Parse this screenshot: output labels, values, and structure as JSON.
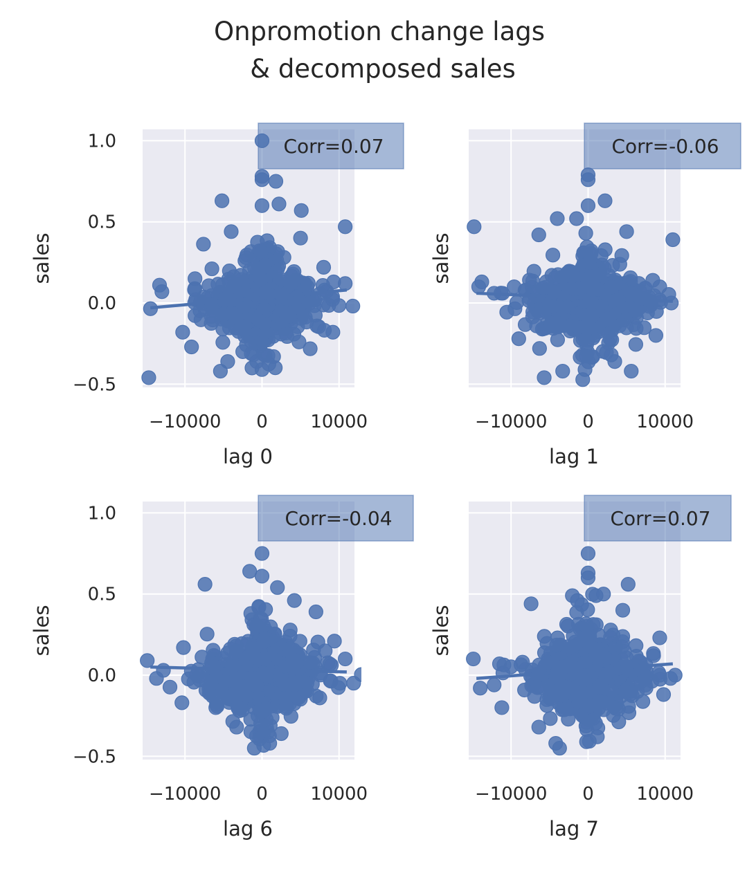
{
  "figure": {
    "title_line1": "Onpromotion change lags",
    "title_line2": "& decomposed sales"
  },
  "colors": {
    "panel_background": "#eaeaf2",
    "grid": "#ffffff",
    "points": "#4c72b0",
    "badge": "#4c72b0",
    "text": "#262626"
  },
  "chart_data": [
    {
      "type": "scatter",
      "title": "",
      "xlabel": "lag 0",
      "ylabel": "sales",
      "annotation": "Corr=0.07",
      "xlim": [
        -15500,
        12000
      ],
      "ylim": [
        -0.52,
        1.07
      ],
      "xticks": [
        -10000,
        0,
        10000
      ],
      "xtick_labels": [
        "−10000",
        "0",
        "10000"
      ],
      "yticks": [
        -0.5,
        0.0,
        0.5,
        1.0
      ],
      "ytick_labels": [
        "−0.5",
        "0.0",
        "0.5",
        "1.0"
      ],
      "grid": true,
      "regression": {
        "x": [
          -14500,
          11000
        ],
        "y": [
          -0.03,
          0.08
        ]
      },
      "outliers": [
        {
          "x": 0,
          "y": 1.0
        },
        {
          "x": 0,
          "y": 0.78
        },
        {
          "x": 0,
          "y": 0.76
        },
        {
          "x": 1800,
          "y": 0.75
        },
        {
          "x": -5200,
          "y": 0.63
        },
        {
          "x": 0,
          "y": 0.6
        },
        {
          "x": 2200,
          "y": 0.61
        },
        {
          "x": 5100,
          "y": 0.57
        },
        {
          "x": 10800,
          "y": 0.47
        },
        {
          "x": -13300,
          "y": 0.11
        },
        {
          "x": -13000,
          "y": 0.07
        },
        {
          "x": -14700,
          "y": -0.46
        },
        {
          "x": -8700,
          "y": 0.15
        },
        {
          "x": 8000,
          "y": 0.22
        },
        {
          "x": 9300,
          "y": 0.13
        },
        {
          "x": 10800,
          "y": 0.12
        },
        {
          "x": 9200,
          "y": -0.18
        },
        {
          "x": -5400,
          "y": -0.42
        },
        {
          "x": -1300,
          "y": -0.4
        },
        {
          "x": 0,
          "y": -0.41
        },
        {
          "x": -2500,
          "y": -0.3
        },
        {
          "x": 1500,
          "y": -0.33
        },
        {
          "x": -4000,
          "y": 0.44
        },
        {
          "x": 5000,
          "y": 0.4
        },
        {
          "x": 4800,
          "y": -0.24
        },
        {
          "x": -10300,
          "y": -0.18
        }
      ]
    },
    {
      "type": "scatter",
      "title": "",
      "xlabel": "lag 1",
      "ylabel": "sales",
      "annotation": "Corr=-0.06",
      "xlim": [
        -15500,
        12000
      ],
      "ylim": [
        -0.52,
        1.07
      ],
      "xticks": [
        -10000,
        0,
        10000
      ],
      "xtick_labels": [
        "−10000",
        "0",
        "10000"
      ],
      "yticks": [
        -0.5,
        0.0,
        0.5,
        1.0
      ],
      "ytick_labels": [
        "−0.5",
        "0.0",
        "0.5",
        "1.0"
      ],
      "grid": true,
      "regression": {
        "x": [
          -14500,
          11000
        ],
        "y": [
          0.06,
          0.01
        ]
      },
      "outliers": [
        {
          "x": 0,
          "y": 0.79
        },
        {
          "x": 0,
          "y": 0.76
        },
        {
          "x": 2200,
          "y": 0.63
        },
        {
          "x": 0,
          "y": 0.6
        },
        {
          "x": -1500,
          "y": 0.52
        },
        {
          "x": -4000,
          "y": 0.52
        },
        {
          "x": -6400,
          "y": 0.42
        },
        {
          "x": -14800,
          "y": 0.47
        },
        {
          "x": 11000,
          "y": 0.39
        },
        {
          "x": 5000,
          "y": 0.44
        },
        {
          "x": -13800,
          "y": 0.13
        },
        {
          "x": -14200,
          "y": 0.1
        },
        {
          "x": -12200,
          "y": 0.06
        },
        {
          "x": -11100,
          "y": 0.06
        },
        {
          "x": -9600,
          "y": 0.1
        },
        {
          "x": 9300,
          "y": 0.1
        },
        {
          "x": 10800,
          "y": 0.0
        },
        {
          "x": 8400,
          "y": 0.14
        },
        {
          "x": 8800,
          "y": -0.2
        },
        {
          "x": -5700,
          "y": -0.46
        },
        {
          "x": -3300,
          "y": -0.42
        },
        {
          "x": -400,
          "y": -0.41
        },
        {
          "x": 5600,
          "y": -0.42
        },
        {
          "x": -6300,
          "y": -0.28
        },
        {
          "x": 3000,
          "y": -0.32
        },
        {
          "x": -9000,
          "y": -0.22
        }
      ]
    },
    {
      "type": "scatter",
      "title": "",
      "xlabel": "lag 6",
      "ylabel": "sales",
      "annotation": "Corr=-0.04",
      "xlim": [
        -15500,
        12000
      ],
      "ylim": [
        -0.52,
        1.07
      ],
      "xticks": [
        -10000,
        0,
        10000
      ],
      "xtick_labels": [
        "−10000",
        "0",
        "10000"
      ],
      "yticks": [
        -0.5,
        0.0,
        0.5,
        1.0
      ],
      "ytick_labels": [
        "−0.5",
        "0.0",
        "0.5",
        "1.0"
      ],
      "grid": true,
      "regression": {
        "x": [
          -14500,
          11000
        ],
        "y": [
          0.05,
          0.02
        ]
      },
      "outliers": [
        {
          "x": 0,
          "y": 0.75
        },
        {
          "x": -1600,
          "y": 0.64
        },
        {
          "x": 0,
          "y": 0.61
        },
        {
          "x": -7400,
          "y": 0.56
        },
        {
          "x": 2000,
          "y": 0.54
        },
        {
          "x": 4200,
          "y": 0.46
        },
        {
          "x": 7000,
          "y": 0.39
        },
        {
          "x": -14900,
          "y": 0.09
        },
        {
          "x": -13700,
          "y": -0.02
        },
        {
          "x": -12800,
          "y": 0.03
        },
        {
          "x": -10200,
          "y": 0.17
        },
        {
          "x": -10400,
          "y": -0.17
        },
        {
          "x": 10800,
          "y": 0.1
        },
        {
          "x": 9400,
          "y": 0.21
        },
        {
          "x": 10100,
          "y": -0.05
        },
        {
          "x": 8200,
          "y": 0.15
        },
        {
          "x": -1000,
          "y": -0.45
        },
        {
          "x": -3300,
          "y": -0.32
        },
        {
          "x": 2500,
          "y": -0.36
        },
        {
          "x": 1000,
          "y": -0.42
        },
        {
          "x": 7500,
          "y": -0.14
        },
        {
          "x": -6000,
          "y": -0.2
        }
      ]
    },
    {
      "type": "scatter",
      "title": "",
      "xlabel": "lag 7",
      "ylabel": "sales",
      "annotation": "Corr=0.07",
      "xlim": [
        -15500,
        12000
      ],
      "ylim": [
        -0.52,
        1.07
      ],
      "xticks": [
        -10000,
        0,
        10000
      ],
      "xtick_labels": [
        "−10000",
        "0",
        "10000"
      ],
      "yticks": [
        -0.5,
        0.0,
        0.5,
        1.0
      ],
      "ytick_labels": [
        "−0.5",
        "0.0",
        "0.5",
        "1.0"
      ],
      "grid": true,
      "regression": {
        "x": [
          -14500,
          11000
        ],
        "y": [
          -0.02,
          0.07
        ]
      },
      "outliers": [
        {
          "x": 0,
          "y": 0.75
        },
        {
          "x": 0,
          "y": 0.63
        },
        {
          "x": 0,
          "y": 0.6
        },
        {
          "x": 5200,
          "y": 0.56
        },
        {
          "x": 2000,
          "y": 0.5
        },
        {
          "x": -1400,
          "y": 0.46
        },
        {
          "x": -7400,
          "y": 0.44
        },
        {
          "x": 4500,
          "y": 0.4
        },
        {
          "x": -14900,
          "y": 0.1
        },
        {
          "x": -14000,
          "y": -0.08
        },
        {
          "x": -12200,
          "y": -0.06
        },
        {
          "x": -11500,
          "y": 0.07
        },
        {
          "x": 9300,
          "y": 0.23
        },
        {
          "x": 10700,
          "y": -0.02
        },
        {
          "x": 11300,
          "y": 0.0
        },
        {
          "x": 8500,
          "y": 0.12
        },
        {
          "x": -4200,
          "y": -0.42
        },
        {
          "x": -3700,
          "y": -0.45
        },
        {
          "x": -200,
          "y": -0.41
        },
        {
          "x": -6400,
          "y": -0.32
        },
        {
          "x": 1200,
          "y": -0.38
        },
        {
          "x": -11200,
          "y": -0.2
        }
      ]
    }
  ]
}
